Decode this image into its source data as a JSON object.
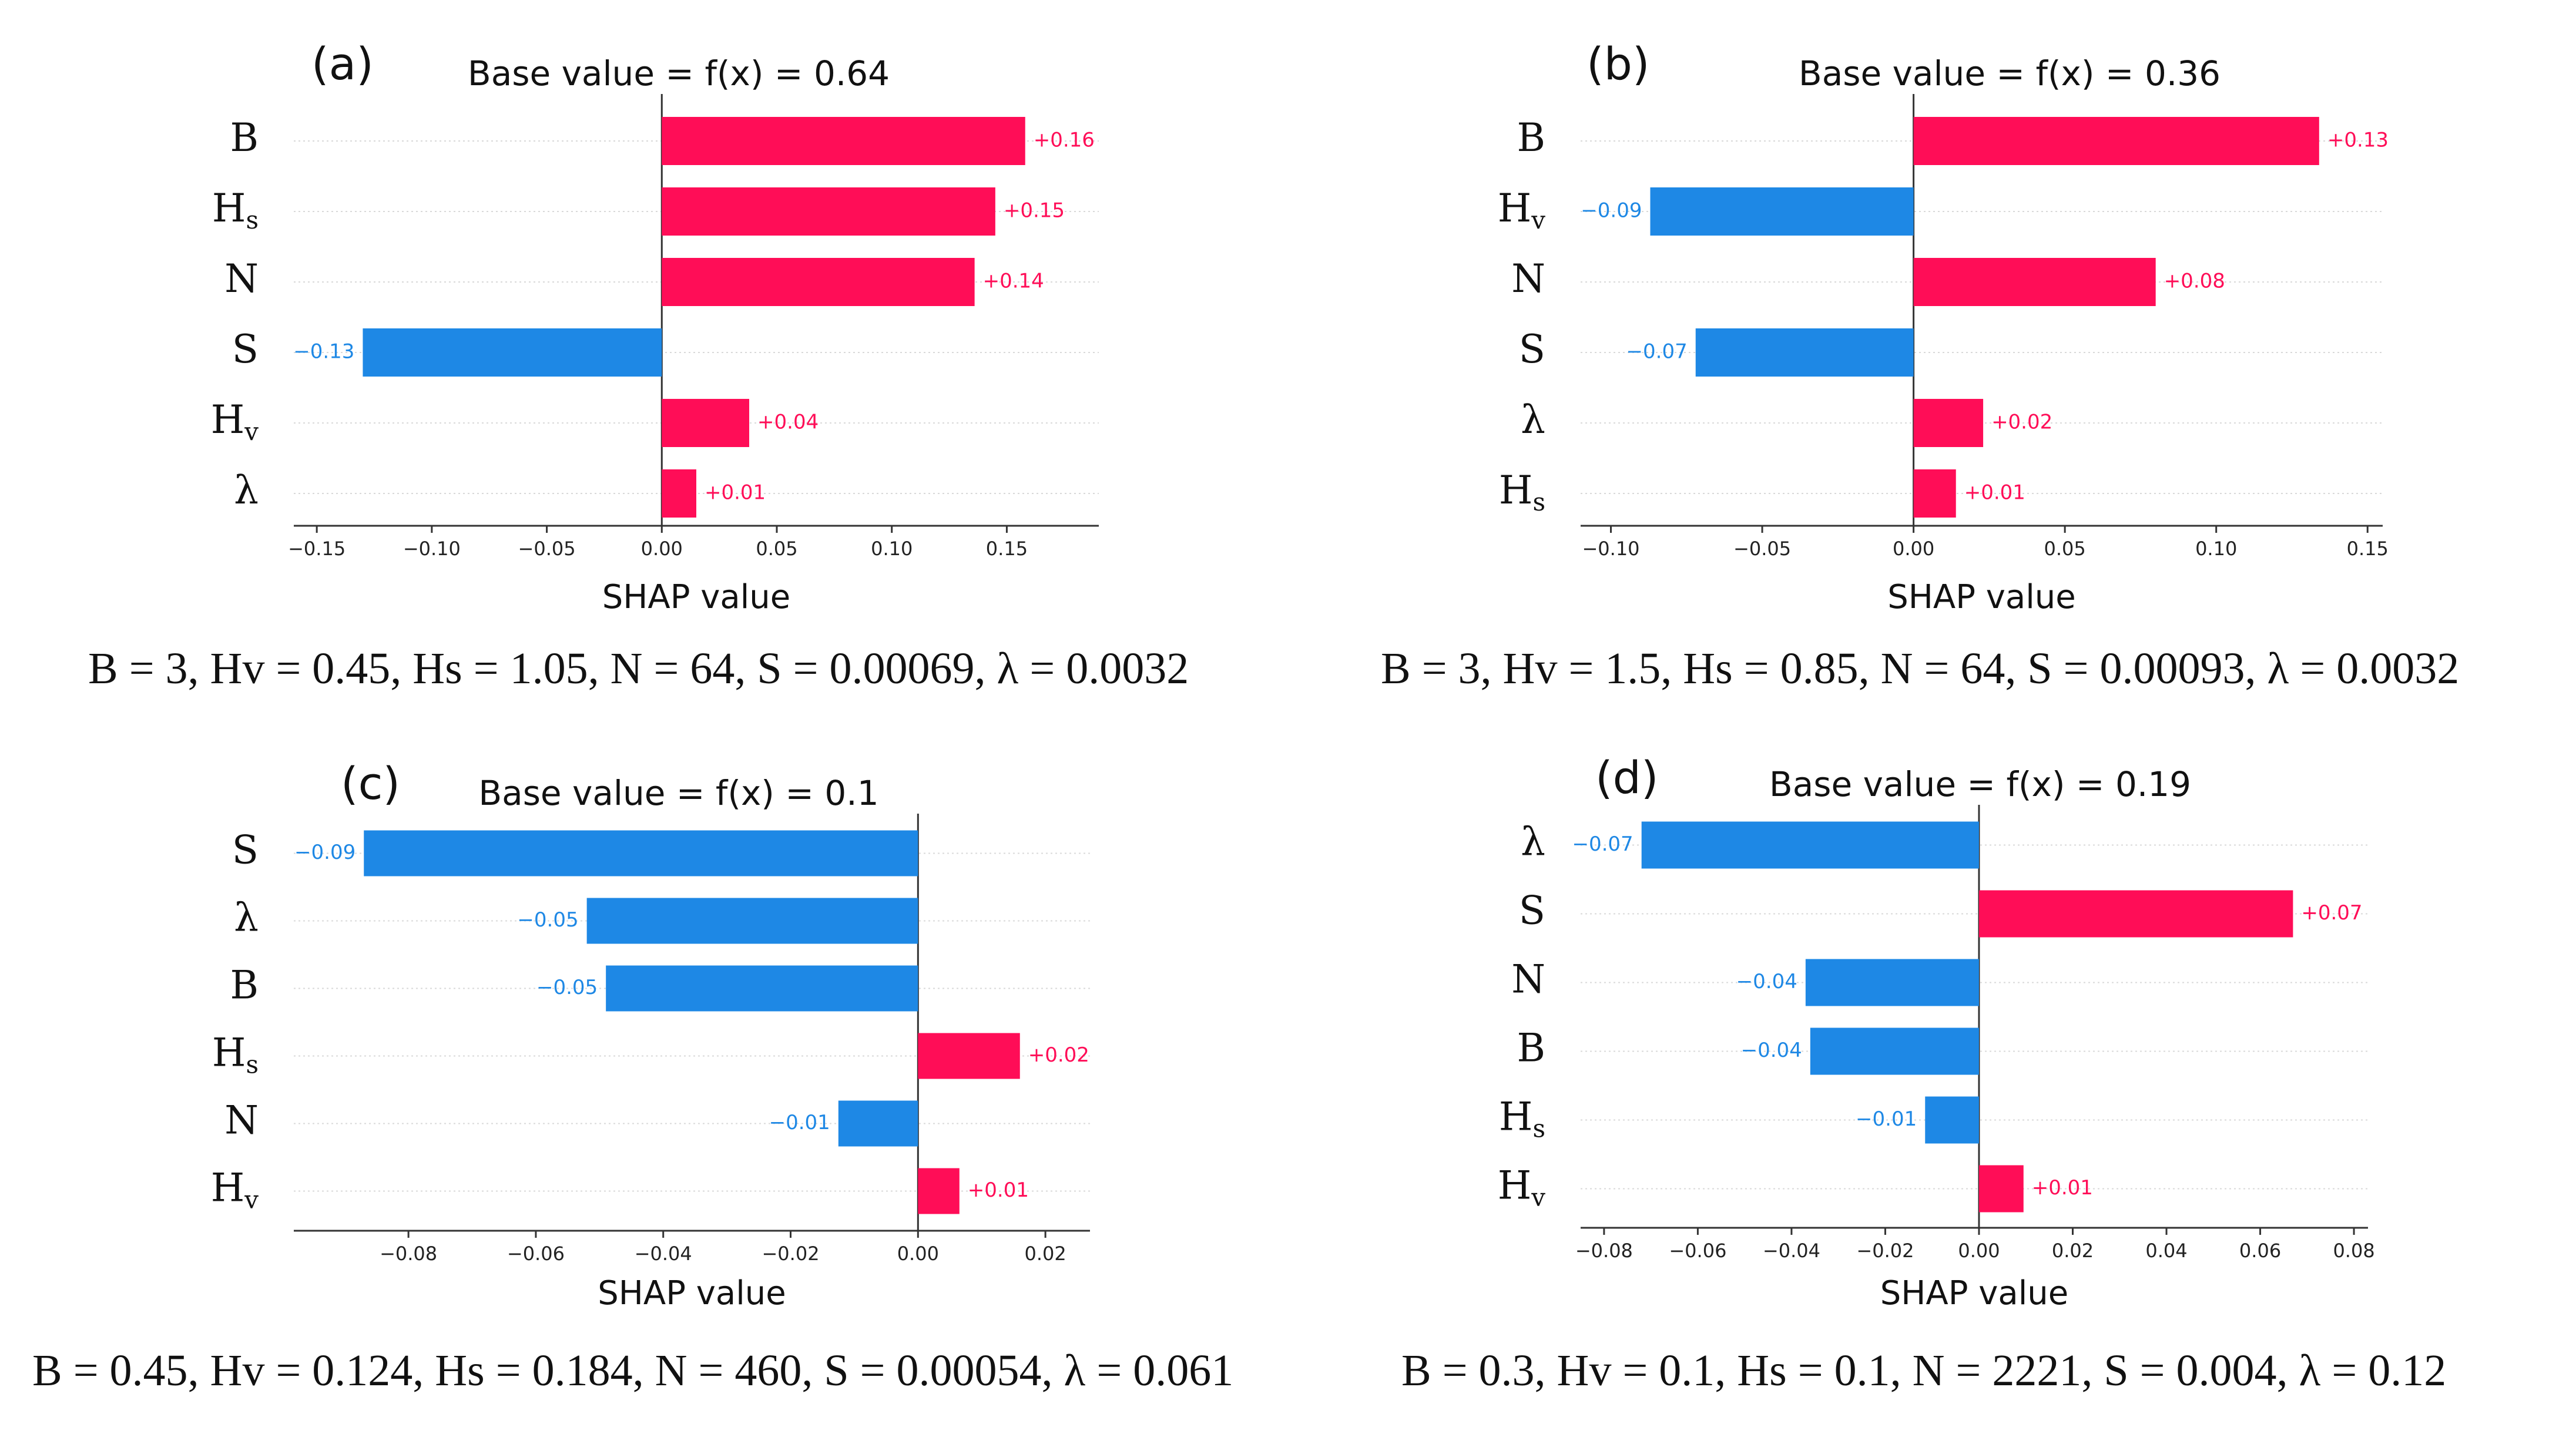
{
  "colors": {
    "positive": "#ff0d57",
    "negative": "#1e88e5",
    "axis": "#333333",
    "grid": "#d9d9d9"
  },
  "chart_data": [
    {
      "type": "bar",
      "panel": "(a)",
      "title": "Base value = f(x) = 0.64",
      "xlabel": "SHAP value",
      "categories": [
        "B",
        "Hs",
        "N",
        "S",
        "Hv",
        "λ"
      ],
      "values": [
        0.158,
        0.145,
        0.136,
        -0.13,
        0.038,
        0.015
      ],
      "value_labels": [
        "+0.16",
        "+0.15",
        "+0.14",
        "−0.13",
        "+0.04",
        "+0.01"
      ],
      "xlim": [
        -0.16,
        0.19
      ],
      "xticks": [
        -0.15,
        -0.1,
        -0.05,
        0.0,
        0.05,
        0.1,
        0.15
      ],
      "xtick_labels": [
        "−0.15",
        "−0.10",
        "−0.05",
        "0.00",
        "0.05",
        "0.10",
        "0.15"
      ],
      "caption": "B = 3, Hv = 0.45, Hs = 1.05, N = 64, S = 0.00069, λ = 0.0032"
    },
    {
      "type": "bar",
      "panel": "(b)",
      "title": "Base value = f(x) = 0.36",
      "xlabel": "SHAP value",
      "categories": [
        "B",
        "Hv",
        "N",
        "S",
        "λ",
        "Hs"
      ],
      "values": [
        0.134,
        -0.087,
        0.08,
        -0.072,
        0.023,
        0.014
      ],
      "value_labels": [
        "+0.13",
        "−0.09",
        "+0.08",
        "−0.07",
        "+0.02",
        "+0.01"
      ],
      "xlim": [
        -0.11,
        0.155
      ],
      "xticks": [
        -0.1,
        -0.05,
        0.0,
        0.05,
        0.1,
        0.15
      ],
      "xtick_labels": [
        "−0.10",
        "−0.05",
        "0.00",
        "0.05",
        "0.10",
        "0.15"
      ],
      "caption": "B = 3, Hv = 1.5, Hs = 0.85, N = 64, S = 0.00093, λ = 0.0032"
    },
    {
      "type": "bar",
      "panel": "(c)",
      "title": "Base value = f(x) = 0.1",
      "xlabel": "SHAP value",
      "categories": [
        "S",
        "λ",
        "B",
        "Hs",
        "N",
        "Hv"
      ],
      "values": [
        -0.087,
        -0.052,
        -0.049,
        0.016,
        -0.0125,
        0.0065
      ],
      "value_labels": [
        "−0.09",
        "−0.05",
        "−0.05",
        "+0.02",
        "−0.01",
        "+0.01"
      ],
      "xlim": [
        -0.098,
        0.027
      ],
      "xticks": [
        -0.08,
        -0.06,
        -0.04,
        -0.02,
        0.0,
        0.02
      ],
      "xtick_labels": [
        "−0.08",
        "−0.06",
        "−0.04",
        "−0.02",
        "0.00",
        "0.02"
      ],
      "caption": "B = 0.45, Hv = 0.124, Hs = 0.184, N = 460, S = 0.00054, λ = 0.061"
    },
    {
      "type": "bar",
      "panel": "(d)",
      "title": "Base value = f(x) = 0.19",
      "xlabel": "SHAP value",
      "categories": [
        "λ",
        "S",
        "N",
        "B",
        "Hs",
        "Hv"
      ],
      "values": [
        -0.072,
        0.067,
        -0.037,
        -0.036,
        -0.0115,
        0.0095
      ],
      "value_labels": [
        "−0.07",
        "+0.07",
        "−0.04",
        "−0.04",
        "−0.01",
        "+0.01"
      ],
      "xlim": [
        -0.085,
        0.083
      ],
      "xticks": [
        -0.08,
        -0.06,
        -0.04,
        -0.02,
        0.0,
        0.02,
        0.04,
        0.06,
        0.08
      ],
      "xtick_labels": [
        "−0.08",
        "−0.06",
        "−0.04",
        "−0.02",
        "0.00",
        "0.02",
        "0.04",
        "0.06",
        "0.08"
      ],
      "caption": "B = 0.3, Hv = 0.1, Hs = 0.1, N = 2221, S = 0.004, λ = 0.12"
    }
  ]
}
